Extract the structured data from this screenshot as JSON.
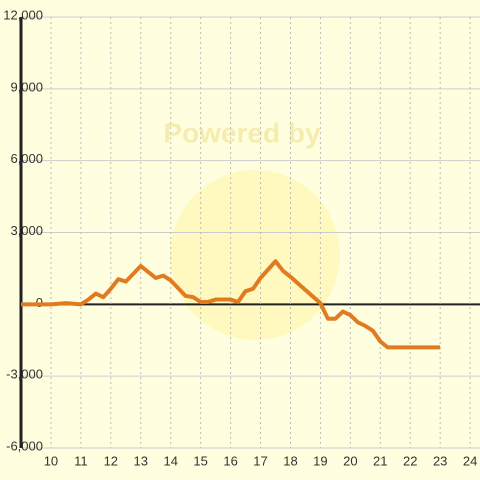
{
  "chart_data": {
    "type": "line",
    "watermark": "Powered by",
    "x": [
      9,
      10,
      10.5,
      11,
      11.25,
      11.5,
      11.75,
      12,
      12.25,
      12.5,
      13,
      13.5,
      13.75,
      14,
      14.5,
      14.75,
      15,
      15.25,
      15.5,
      16,
      16.25,
      16.5,
      16.75,
      17,
      17.5,
      17.75,
      18,
      18.5,
      19,
      19.25,
      19.5,
      19.75,
      20,
      20.25,
      20.5,
      20.75,
      21,
      21.25,
      22,
      23
    ],
    "series": [
      {
        "color": "#e07b20",
        "values": [
          0,
          0,
          50,
          0,
          200,
          450,
          300,
          650,
          1050,
          950,
          1600,
          1100,
          1200,
          1000,
          350,
          300,
          100,
          100,
          200,
          200,
          100,
          550,
          650,
          1100,
          1800,
          1400,
          1150,
          600,
          50,
          -600,
          -600,
          -300,
          -450,
          -750,
          -900,
          -1100,
          -1550,
          -1800,
          -1800,
          -1800
        ]
      }
    ],
    "xlim": [
      9,
      24.33
    ],
    "xticks": [
      10,
      11,
      12,
      13,
      14,
      15,
      16,
      17,
      18,
      19,
      20,
      21,
      22,
      23,
      24
    ],
    "ylim": [
      -6000,
      12000
    ],
    "yticks": [
      {
        "value": -6000,
        "label": "-6,000"
      },
      {
        "value": -3000,
        "label": "-3,000"
      },
      0,
      {
        "value": 3000,
        "label": "3,000"
      },
      {
        "value": 6000,
        "label": "6,000"
      },
      {
        "value": 9000,
        "label": "9,000"
      },
      {
        "value": 12000,
        "label": "12,000"
      }
    ],
    "grid": true
  }
}
